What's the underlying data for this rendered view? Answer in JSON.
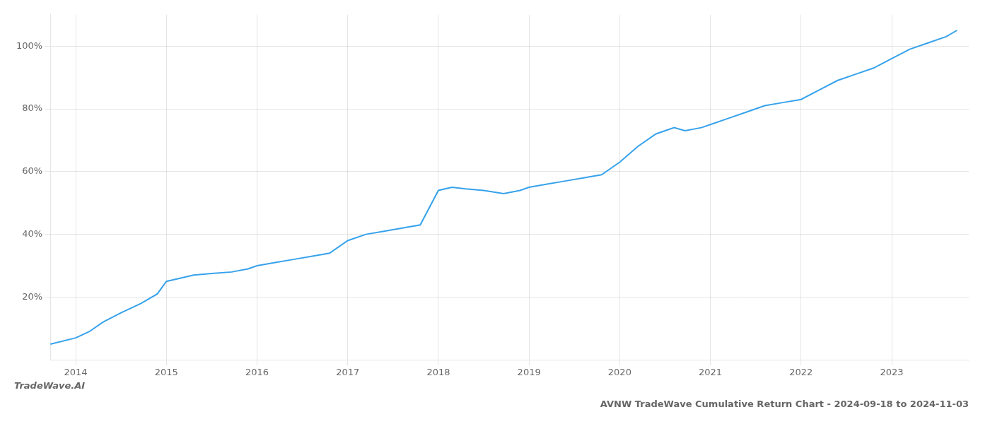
{
  "chart_data": {
    "type": "line",
    "title": "AVNW TradeWave Cumulative Return Chart - 2024-09-18 to 2024-11-03",
    "annotations": [
      "TradeWave.AI"
    ],
    "x": [
      2013.72,
      2014.0,
      2014.15,
      2014.3,
      2014.5,
      2014.72,
      2014.9,
      2015.0,
      2015.15,
      2015.3,
      2015.5,
      2015.72,
      2015.9,
      2016.0,
      2016.2,
      2016.4,
      2016.6,
      2016.8,
      2017.0,
      2017.2,
      2017.4,
      2017.6,
      2017.8,
      2018.0,
      2018.15,
      2018.3,
      2018.5,
      2018.72,
      2018.9,
      2019.0,
      2019.2,
      2019.4,
      2019.6,
      2019.8,
      2020.0,
      2020.2,
      2020.4,
      2020.6,
      2020.72,
      2020.9,
      2021.0,
      2021.2,
      2021.4,
      2021.6,
      2021.8,
      2022.0,
      2022.2,
      2022.4,
      2022.6,
      2022.8,
      2023.0,
      2023.2,
      2023.4,
      2023.6,
      2023.72
    ],
    "values": [
      5,
      7,
      9,
      12,
      15,
      18,
      21,
      25,
      26,
      27,
      27.5,
      28,
      29,
      30,
      31,
      32,
      33,
      34,
      38,
      40,
      41,
      42,
      43,
      54,
      55,
      54.5,
      54,
      53,
      54,
      55,
      56,
      57,
      58,
      59,
      63,
      68,
      72,
      74,
      73,
      74,
      75,
      77,
      79,
      81,
      82,
      83,
      86,
      89,
      91,
      93,
      96,
      99,
      101,
      103,
      105
    ],
    "xlim": [
      2013.72,
      2023.85
    ],
    "xticks": [
      2014,
      2015,
      2016,
      2017,
      2018,
      2019,
      2020,
      2021,
      2022,
      2023
    ],
    "ylim": [
      0,
      110
    ],
    "yticks": [
      {
        "value": 20,
        "label": "20%"
      },
      {
        "value": 40,
        "label": "40%"
      },
      {
        "value": 60,
        "label": "60%"
      },
      {
        "value": 80,
        "label": "80%"
      },
      {
        "value": 100,
        "label": "100%"
      }
    ],
    "grid": true
  }
}
